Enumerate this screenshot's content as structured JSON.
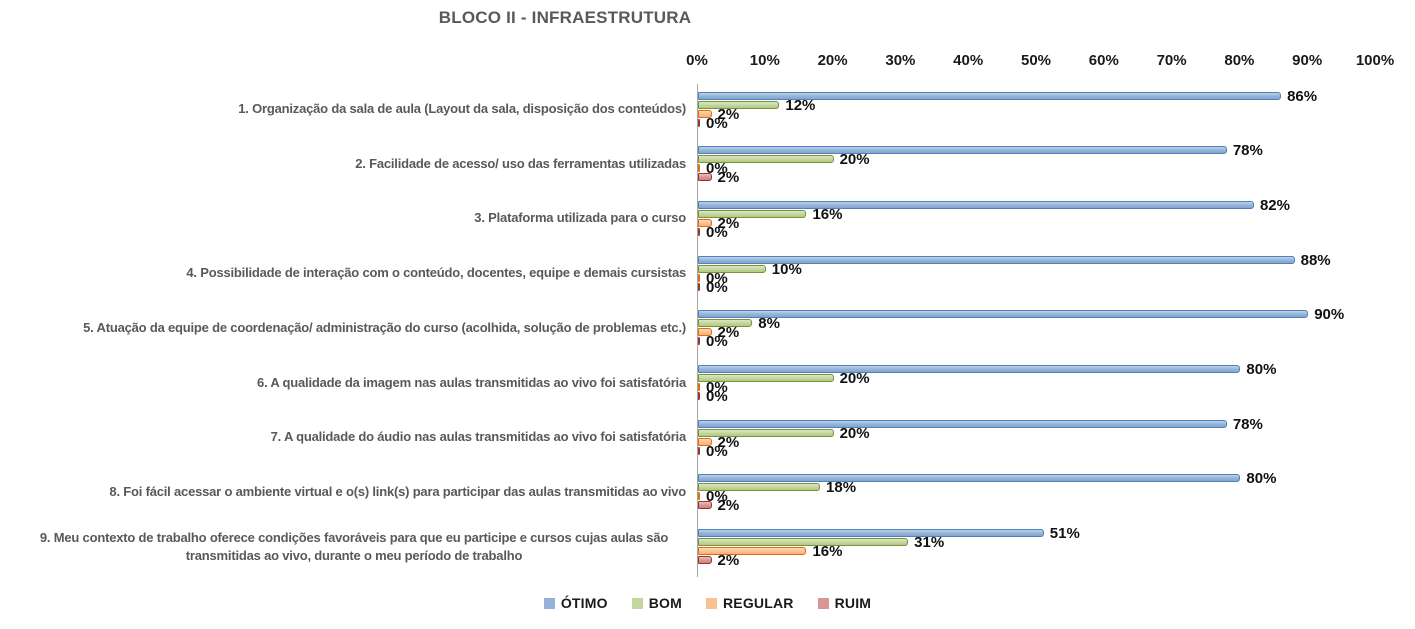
{
  "title": "BLOCO II - INFRAESTRUTURA",
  "chart_data": {
    "type": "bar",
    "orientation": "horizontal",
    "title": "BLOCO II - INFRAESTRUTURA",
    "xlim": [
      0,
      100
    ],
    "x_ticks": [
      "0%",
      "10%",
      "20%",
      "30%",
      "40%",
      "50%",
      "60%",
      "70%",
      "80%",
      "90%",
      "100%"
    ],
    "grid": false,
    "legend_position": "bottom",
    "value_suffix": "%",
    "categories": [
      "1. Organização da sala de aula (Layout da sala, disposição dos conteúdos)",
      "2. Facilidade de acesso/ uso das ferramentas utilizadas",
      "3. Plataforma utilizada para o curso",
      "4. Possibilidade de interação com o conteúdo, docentes, equipe e demais cursistas",
      "5. Atuação da equipe de coordenação/ administração do curso (acolhida, solução de problemas etc.)",
      "6. A qualidade da imagem nas aulas transmitidas ao vivo foi satisfatória",
      "7. A qualidade do áudio nas aulas transmitidas ao vivo foi satisfatória",
      "8. Foi fácil acessar o ambiente virtual e o(s) link(s) para participar das aulas transmitidas ao vivo",
      "9. Meu contexto de trabalho oferece condições favoráveis para que eu participe e cursos cujas aulas são transmitidas ao vivo, durante o meu período de trabalho"
    ],
    "series": [
      {
        "name": "ÓTIMO",
        "fill": "#95B3D7",
        "fill_light": "#C0D1E9",
        "fill_dark": "#83A5CD",
        "border": "#4F81BD",
        "values": [
          86,
          78,
          82,
          88,
          90,
          80,
          78,
          80,
          51
        ]
      },
      {
        "name": "BOM",
        "fill": "#C3D69B",
        "fill_light": "#DCE7C1",
        "fill_dark": "#B2C983",
        "border": "#77933C",
        "values": [
          12,
          20,
          16,
          10,
          8,
          20,
          20,
          18,
          31
        ]
      },
      {
        "name": "REGULAR",
        "fill": "#FAC090",
        "fill_light": "#FDDAB8",
        "fill_dark": "#F6B077",
        "border": "#E26B0A",
        "values": [
          2,
          0,
          2,
          0,
          2,
          0,
          2,
          0,
          16
        ]
      },
      {
        "name": "RUIM",
        "fill": "#D99694",
        "fill_light": "#E8BEBD",
        "fill_dark": "#CE817F",
        "border": "#963634",
        "values": [
          0,
          2,
          0,
          0,
          0,
          0,
          0,
          2,
          2
        ]
      }
    ]
  }
}
